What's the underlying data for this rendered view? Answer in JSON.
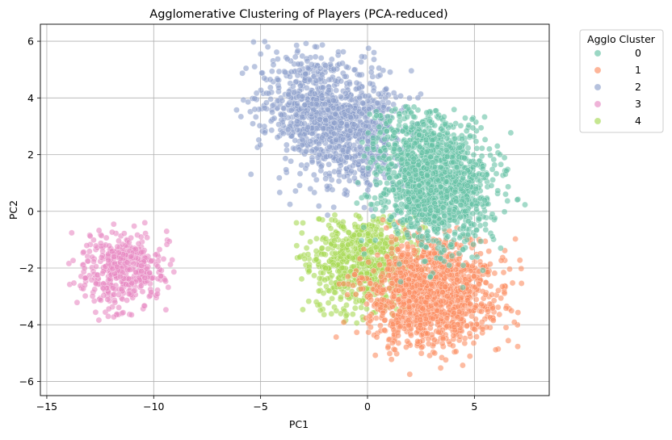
{
  "chart_data": {
    "type": "scatter",
    "title": "Agglomerative Clustering of Players (PCA-reduced)",
    "xlabel": "PC1",
    "ylabel": "PC2",
    "xlim": [
      -15.3,
      8.5
    ],
    "ylim": [
      -6.5,
      6.6
    ],
    "xticks": [
      -15,
      -10,
      -5,
      0,
      5
    ],
    "yticks": [
      -6,
      -4,
      -2,
      0,
      2,
      4,
      6
    ],
    "xtick_labels": [
      "−15",
      "−10",
      "−5",
      "0",
      "5"
    ],
    "ytick_labels": [
      "−6",
      "−4",
      "−2",
      "0",
      "2",
      "4",
      "6"
    ],
    "grid": true,
    "legend": {
      "title": "Agglo Cluster",
      "placement": "outside-right-top"
    },
    "series": [
      {
        "name": "0",
        "color": "#66c2a5",
        "center": [
          3.0,
          1.2
        ],
        "spread": [
          1.5,
          1.15
        ],
        "rotation_deg": -30,
        "count": 1400,
        "x_range": [
          -0.5,
          7.5
        ],
        "y_range": [
          -3.5,
          3.7
        ]
      },
      {
        "name": "1",
        "color": "#fc8d62",
        "center": [
          3.0,
          -2.9
        ],
        "spread": [
          1.5,
          0.95
        ],
        "rotation_deg": 0,
        "count": 1300,
        "x_range": [
          -1.5,
          7.5
        ],
        "y_range": [
          -6.0,
          -0.2
        ]
      },
      {
        "name": "2",
        "color": "#8da0cb",
        "center": [
          -1.6,
          3.2
        ],
        "spread": [
          1.7,
          1.05
        ],
        "rotation_deg": -22,
        "count": 1200,
        "x_range": [
          -6.2,
          2.5
        ],
        "y_range": [
          -0.5,
          6.0
        ]
      },
      {
        "name": "3",
        "color": "#e78ac3",
        "center": [
          -11.5,
          -2.1
        ],
        "spread": [
          0.95,
          0.68
        ],
        "rotation_deg": 0,
        "count": 450,
        "x_range": [
          -14.1,
          -8.9
        ],
        "y_range": [
          -3.9,
          -0.4
        ]
      },
      {
        "name": "4",
        "color": "#a6d854",
        "center": [
          -0.3,
          -1.8
        ],
        "spread": [
          1.3,
          0.85
        ],
        "rotation_deg": 0,
        "count": 650,
        "x_range": [
          -3.5,
          2.8
        ],
        "y_range": [
          -4.0,
          -0.1
        ]
      }
    ],
    "draw_order": [
      "3",
      "2",
      "4",
      "1",
      "0"
    ]
  }
}
